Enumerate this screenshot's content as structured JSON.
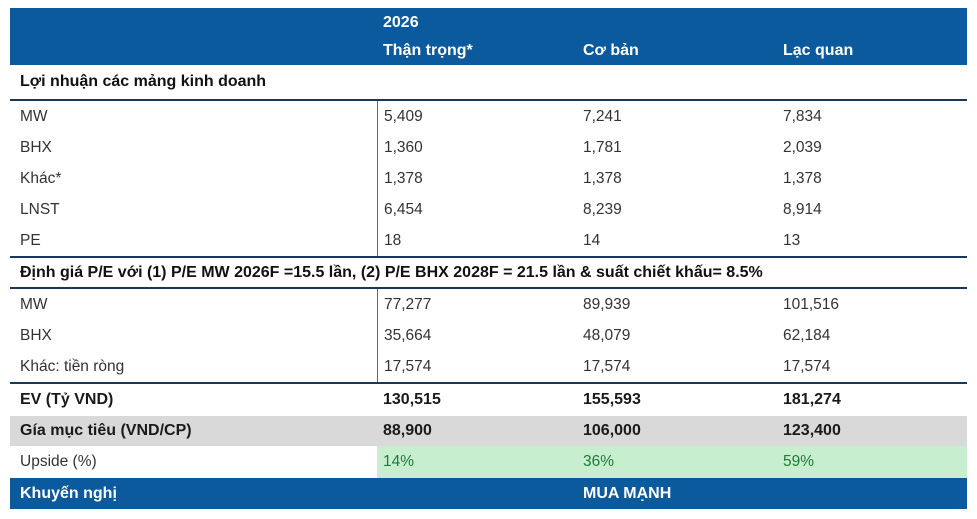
{
  "table": {
    "header": {
      "year": "2026",
      "columns": [
        "Thận trọng*",
        "Cơ bản",
        "Lạc quan"
      ]
    },
    "sections": [
      {
        "title": "Lợi nhuận các mảng kinh doanh",
        "rows": [
          {
            "label": "MW",
            "values": [
              "5,409",
              "7,241",
              "7,834"
            ]
          },
          {
            "label": "BHX",
            "values": [
              "1,360",
              "1,781",
              "2,039"
            ]
          },
          {
            "label": "Khác*",
            "values": [
              "1,378",
              "1,378",
              "1,378"
            ]
          },
          {
            "label": "LNST",
            "values": [
              "6,454",
              "8,239",
              "8,914"
            ]
          },
          {
            "label": "PE",
            "values": [
              "18",
              "14",
              "13"
            ]
          }
        ]
      },
      {
        "title": "Định giá P/E với (1) P/E MW 2026F =15.5 lần, (2) P/E BHX 2028F = 21.5 lần & suất chiết khấu= 8.5%",
        "rows": [
          {
            "label": "MW",
            "values": [
              "77,277",
              "89,939",
              "101,516"
            ]
          },
          {
            "label": "BHX",
            "values": [
              "35,664",
              "48,079",
              "62,184"
            ]
          },
          {
            "label": "Khác: tiền ròng",
            "values": [
              "17,574",
              "17,574",
              "17,574"
            ]
          }
        ]
      }
    ],
    "summary_rows": [
      {
        "label": "EV (Tỷ VND)",
        "values": [
          "130,515",
          "155,593",
          "181,274"
        ]
      },
      {
        "label": "Gía mục tiêu (VND/CP)",
        "values": [
          "88,900",
          "106,000",
          "123,400"
        ]
      },
      {
        "label": "Upside (%)",
        "values": [
          "14%",
          "36%",
          "59%"
        ]
      }
    ],
    "footer": {
      "label": "Khuyến nghị",
      "recommendation": "MUA MẠNH"
    }
  },
  "colors": {
    "header_bg": "#0B5A9D",
    "rule": "#17375D",
    "gray_row_bg": "#D9D9D9",
    "upside_bg": "#C8EED0",
    "upside_text": "#1E7B34"
  }
}
